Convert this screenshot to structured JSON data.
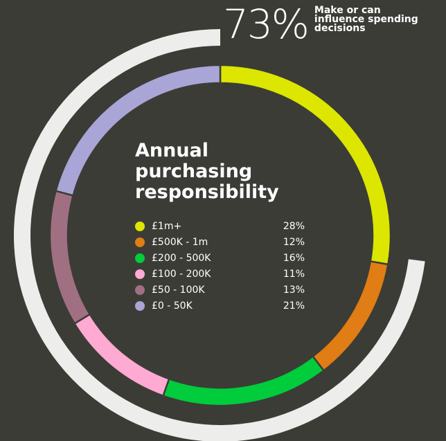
{
  "highlight": {
    "value": "73%",
    "caption": "Make or can\ninfluence spending\ndecisions",
    "fraction": 0.73,
    "color": "#ededeb"
  },
  "chart_data": {
    "type": "pie",
    "title": "Annual\npurchasing\nresponsibility",
    "categories": [
      "£1m+",
      "£500K - 1m",
      "£200 - 500K",
      "£100 - 200K",
      "£50 - 100K",
      "£0 - 50K"
    ],
    "values": [
      28,
      12,
      16,
      11,
      13,
      21
    ],
    "value_labels": [
      "28%",
      "12%",
      "16%",
      "11%",
      "13%",
      "21%"
    ],
    "colors": [
      "#dce600",
      "#e07d14",
      "#00cc3c",
      "#ffaad2",
      "#a07082",
      "#a9a5d6"
    ],
    "legend_placement": "center"
  }
}
